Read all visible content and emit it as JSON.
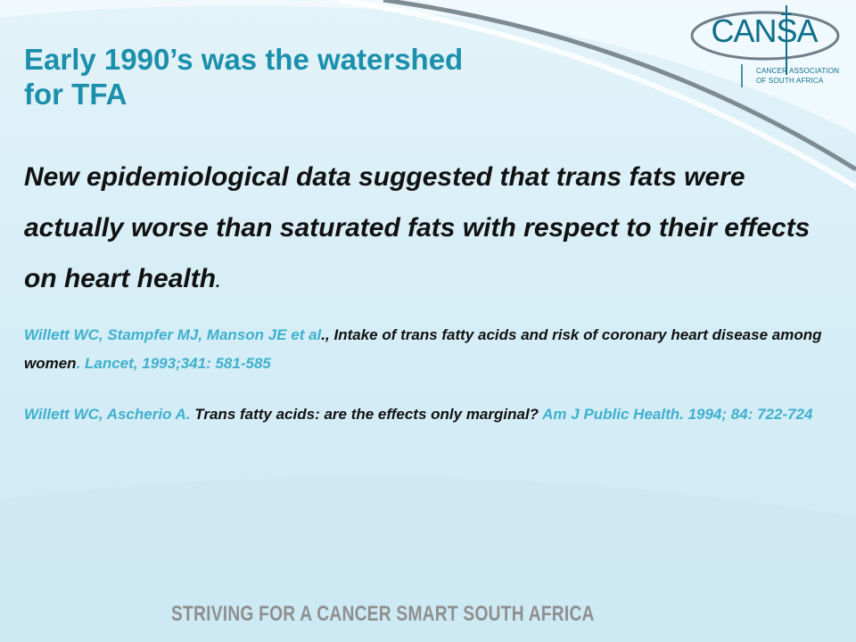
{
  "slide": {
    "title_line1": "Early 1990’s was the watershed",
    "title_line2": "for TFA",
    "body": "New epidemiological data suggested that trans fats were actually worse than saturated fats with respect to their effects on heart health",
    "body_period": "."
  },
  "references": [
    {
      "authors": "Willett WC, Stampfer MJ, Manson JE et al",
      "title": "., Intake of trans fatty acids and risk of coronary heart disease among women",
      "citation": ". Lancet, 1993;341: 581-585"
    },
    {
      "authors": "Willett WC, Ascherio A. ",
      "title": "Trans fatty acids:  are the effects only marginal?",
      "citation": " Am J Public Health. 1994; 84: 722-724"
    }
  ],
  "logo": {
    "name": "CANSA",
    "subtitle_line1": "CANCER ASSOCIATION",
    "subtitle_line2": "OF SOUTH AFRICA"
  },
  "footer": {
    "tagline": "STRIVING FOR A CANCER SMART SOUTH AFRICA"
  },
  "colors": {
    "title": "#1b8fab",
    "reference_accent": "#3fb0cd",
    "body_text": "#111111",
    "footer_text": "#8f8f8f"
  }
}
